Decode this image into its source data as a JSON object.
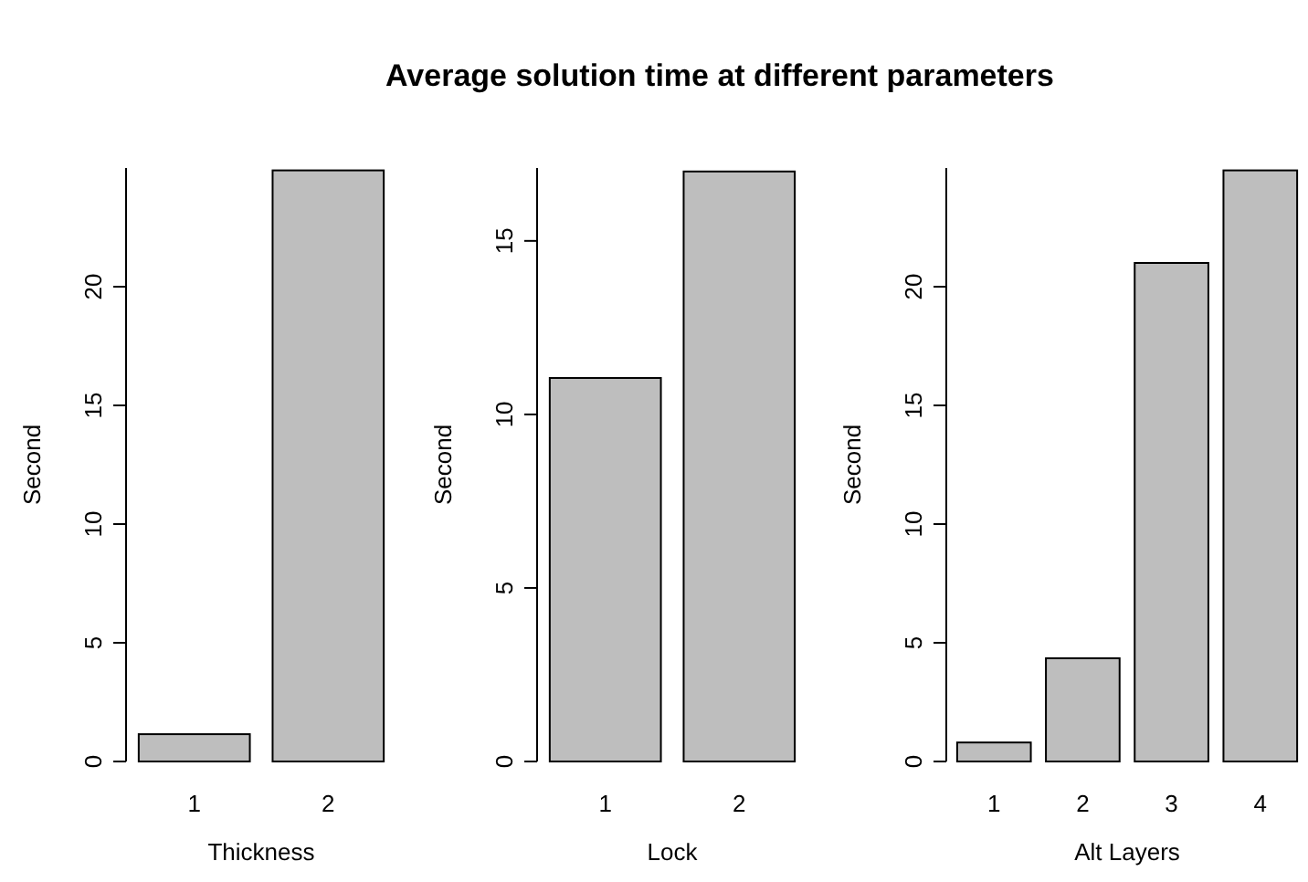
{
  "chart_data": [
    {
      "type": "bar",
      "xlabel": "Thickness",
      "ylabel": "Second",
      "categories": [
        "1",
        "2"
      ],
      "values": [
        1.15,
        24.9
      ],
      "color": "#bebebe",
      "ylim": [
        0,
        25
      ],
      "yticks": [
        0,
        5,
        10,
        15,
        20
      ]
    },
    {
      "type": "bar",
      "title": "Average solution time at different parameters",
      "xlabel": "Lock",
      "ylabel": "Second",
      "categories": [
        "1",
        "2"
      ],
      "values": [
        11.05,
        17.0
      ],
      "color": "#bebebe",
      "ylim": [
        0,
        17.1
      ],
      "yticks": [
        0,
        5,
        10,
        15
      ]
    },
    {
      "type": "bar",
      "xlabel": "Alt Layers",
      "ylabel": "Second",
      "categories": [
        "1",
        "2",
        "3",
        "4"
      ],
      "values": [
        0.8,
        4.35,
        21.0,
        24.9
      ],
      "color": "#bebebe",
      "ylim": [
        0,
        25
      ],
      "yticks": [
        0,
        5,
        10,
        15,
        20
      ]
    }
  ]
}
